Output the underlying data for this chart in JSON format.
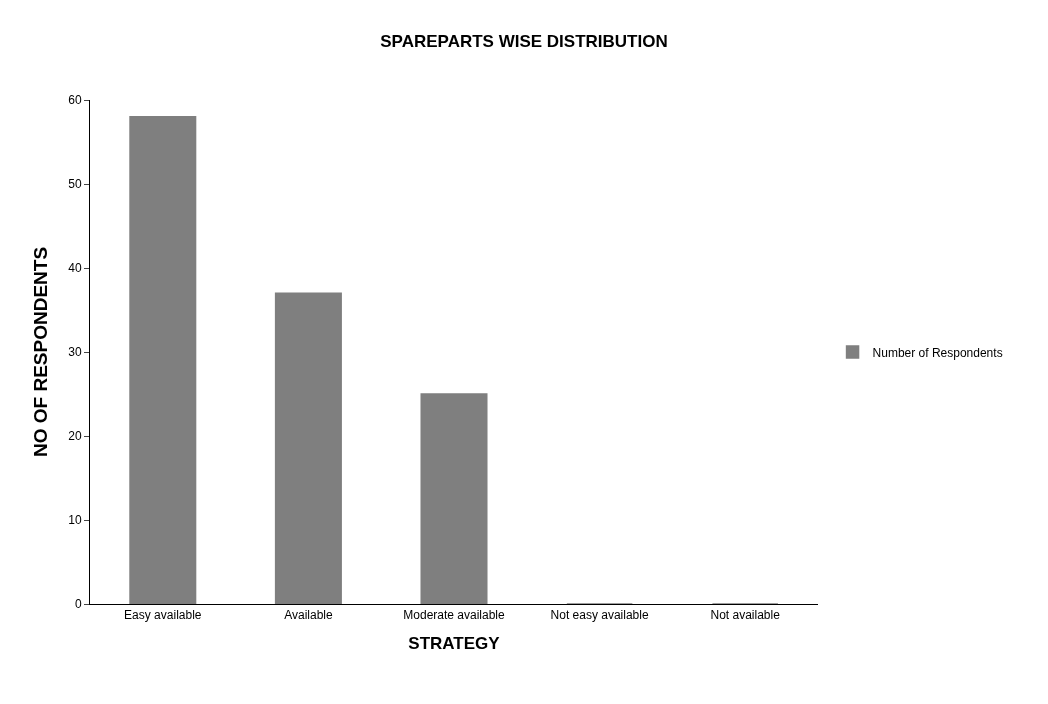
{
  "chart_data": {
    "type": "bar",
    "title": "SPAREPARTS WISE DISTRIBUTION",
    "xlabel": "STRATEGY",
    "ylabel": "NO OF RESPONDENTS",
    "categories": [
      "Easy available",
      "Available",
      "Moderate available",
      "Not easy available",
      "Not available"
    ],
    "series": [
      {
        "name": "Number of Respondents",
        "color": "#7f7f7f",
        "values": [
          58,
          37,
          25,
          0,
          0
        ]
      }
    ],
    "ylim": [
      0,
      60
    ],
    "yticks": [
      0,
      10,
      20,
      30,
      40,
      50,
      60
    ],
    "legend": "right"
  }
}
